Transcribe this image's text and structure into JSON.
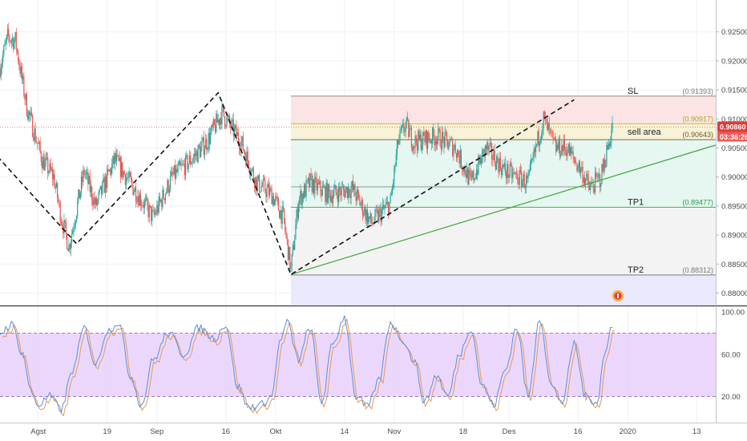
{
  "colors": {
    "up": "#26a69a",
    "down": "#ef5350",
    "stop_zone": "#fde4e4",
    "target_zone": "#e6f6f1",
    "neutral_zone": "#f3f3f3",
    "tp2_zone": "#e9e9fb",
    "sell_band": "#f7f3d6",
    "trend_line": "#3da63d",
    "zigzag": "#111111",
    "oscillator_band": "#e6c9fb",
    "stoch_k": "#5b8fd6",
    "stoch_d": "#e39a55",
    "current_price": "#e53935",
    "tp_text": "#2e9d4a",
    "sl_text": "#7a7a7a",
    "sell_area_text": "#8a8a1a"
  },
  "chart_data": [
    {
      "type": "candlestick",
      "pair_axis": "price",
      "ylim": [
        0.878,
        0.928
      ],
      "price_ticks": [
        "0.92500",
        "0.92000",
        "0.91500",
        "0.91000",
        "0.90500",
        "0.90000",
        "0.89500",
        "0.89000",
        "0.88500",
        "0.88000"
      ],
      "price_tick_values": [
        0.925,
        0.92,
        0.915,
        0.91,
        0.905,
        0.9,
        0.895,
        0.89,
        0.885,
        0.88
      ],
      "x_labels": [
        "Agst",
        "19",
        "Sep",
        "16",
        "Okt",
        "14",
        "Nov",
        "18",
        "Des",
        "16",
        "2020",
        "13"
      ],
      "x_label_days": [
        10,
        28,
        41,
        59,
        72,
        90,
        103,
        121,
        133,
        151,
        164,
        182
      ],
      "x_range_days": [
        0,
        187
      ],
      "last_bar_day": 160,
      "path": [
        [
          0,
          0.919
        ],
        [
          2,
          0.924
        ],
        [
          4,
          0.9235
        ],
        [
          7,
          0.912
        ],
        [
          11,
          0.903
        ],
        [
          14,
          0.9
        ],
        [
          16,
          0.893
        ],
        [
          18,
          0.888
        ],
        [
          22,
          0.901
        ],
        [
          25,
          0.895
        ],
        [
          30,
          0.903
        ],
        [
          35,
          0.898
        ],
        [
          40,
          0.893
        ],
        [
          45,
          0.9
        ],
        [
          50,
          0.903
        ],
        [
          54,
          0.906
        ],
        [
          58,
          0.911
        ],
        [
          60,
          0.909
        ],
        [
          63,
          0.906
        ],
        [
          67,
          0.899
        ],
        [
          71,
          0.897
        ],
        [
          74,
          0.893
        ],
        [
          76,
          0.884
        ],
        [
          78,
          0.896
        ],
        [
          81,
          0.899
        ],
        [
          86,
          0.897
        ],
        [
          92,
          0.898
        ],
        [
          97,
          0.892
        ],
        [
          102,
          0.8955
        ],
        [
          104,
          0.906
        ],
        [
          106,
          0.909
        ],
        [
          108,
          0.906
        ],
        [
          114,
          0.907
        ],
        [
          119,
          0.905
        ],
        [
          123,
          0.899
        ],
        [
          127,
          0.905
        ],
        [
          132,
          0.901
        ],
        [
          138,
          0.899
        ],
        [
          140,
          0.905
        ],
        [
          142,
          0.91
        ],
        [
          145,
          0.905
        ],
        [
          148,
          0.905
        ],
        [
          152,
          0.901
        ],
        [
          154,
          0.898
        ],
        [
          157,
          0.9
        ],
        [
          160,
          0.9086
        ]
      ],
      "levels": [
        {
          "name": "SL",
          "price": 0.91393,
          "label": "(0.91393)"
        },
        {
          "name": "",
          "price": 0.90917,
          "label": "(0.90917)"
        },
        {
          "name": "sell area",
          "price": 0.90643,
          "label": "(0.90643)"
        },
        {
          "name": "TP1",
          "price": 0.89477,
          "label": "(0.89477)"
        },
        {
          "name": "TP2",
          "price": 0.88312,
          "label": "(0.88312)"
        }
      ],
      "position_start_day": 76,
      "current_price": "0.90860",
      "current_price_value": 0.9086,
      "countdown": "03:36:26",
      "support_level": 0.8983,
      "trend_line": [
        [
          76,
          0.8832
        ],
        [
          187,
          0.9055
        ]
      ],
      "zigzag": [
        [
          -2,
          0.9045
        ],
        [
          20,
          0.8885
        ],
        [
          57,
          0.9145
        ],
        [
          76,
          0.8832
        ],
        [
          150,
          0.9133
        ]
      ]
    },
    {
      "type": "line",
      "indicator": "stochastic",
      "ylim": [
        0,
        100
      ],
      "y_ticks": [
        "100.00",
        "60.00",
        "20.00"
      ],
      "y_tick_values": [
        100,
        60,
        20
      ],
      "band": [
        20,
        80
      ],
      "anchors": [
        [
          0,
          80
        ],
        [
          3,
          88
        ],
        [
          6,
          60
        ],
        [
          8,
          25
        ],
        [
          10,
          12
        ],
        [
          13,
          20
        ],
        [
          16,
          8
        ],
        [
          19,
          45
        ],
        [
          22,
          85
        ],
        [
          25,
          50
        ],
        [
          28,
          82
        ],
        [
          31,
          90
        ],
        [
          34,
          40
        ],
        [
          37,
          12
        ],
        [
          40,
          55
        ],
        [
          44,
          80
        ],
        [
          48,
          60
        ],
        [
          52,
          85
        ],
        [
          56,
          75
        ],
        [
          59,
          88
        ],
        [
          62,
          30
        ],
        [
          65,
          10
        ],
        [
          68,
          12
        ],
        [
          71,
          20
        ],
        [
          73,
          70
        ],
        [
          75,
          90
        ],
        [
          78,
          55
        ],
        [
          81,
          85
        ],
        [
          84,
          15
        ],
        [
          87,
          70
        ],
        [
          90,
          95
        ],
        [
          93,
          20
        ],
        [
          96,
          10
        ],
        [
          99,
          35
        ],
        [
          102,
          90
        ],
        [
          105,
          75
        ],
        [
          108,
          55
        ],
        [
          111,
          15
        ],
        [
          114,
          40
        ],
        [
          117,
          20
        ],
        [
          120,
          60
        ],
        [
          123,
          85
        ],
        [
          126,
          30
        ],
        [
          129,
          12
        ],
        [
          132,
          45
        ],
        [
          135,
          85
        ],
        [
          138,
          20
        ],
        [
          141,
          95
        ],
        [
          144,
          30
        ],
        [
          147,
          15
        ],
        [
          150,
          70
        ],
        [
          153,
          20
        ],
        [
          156,
          15
        ],
        [
          158,
          60
        ],
        [
          160,
          88
        ]
      ]
    }
  ]
}
